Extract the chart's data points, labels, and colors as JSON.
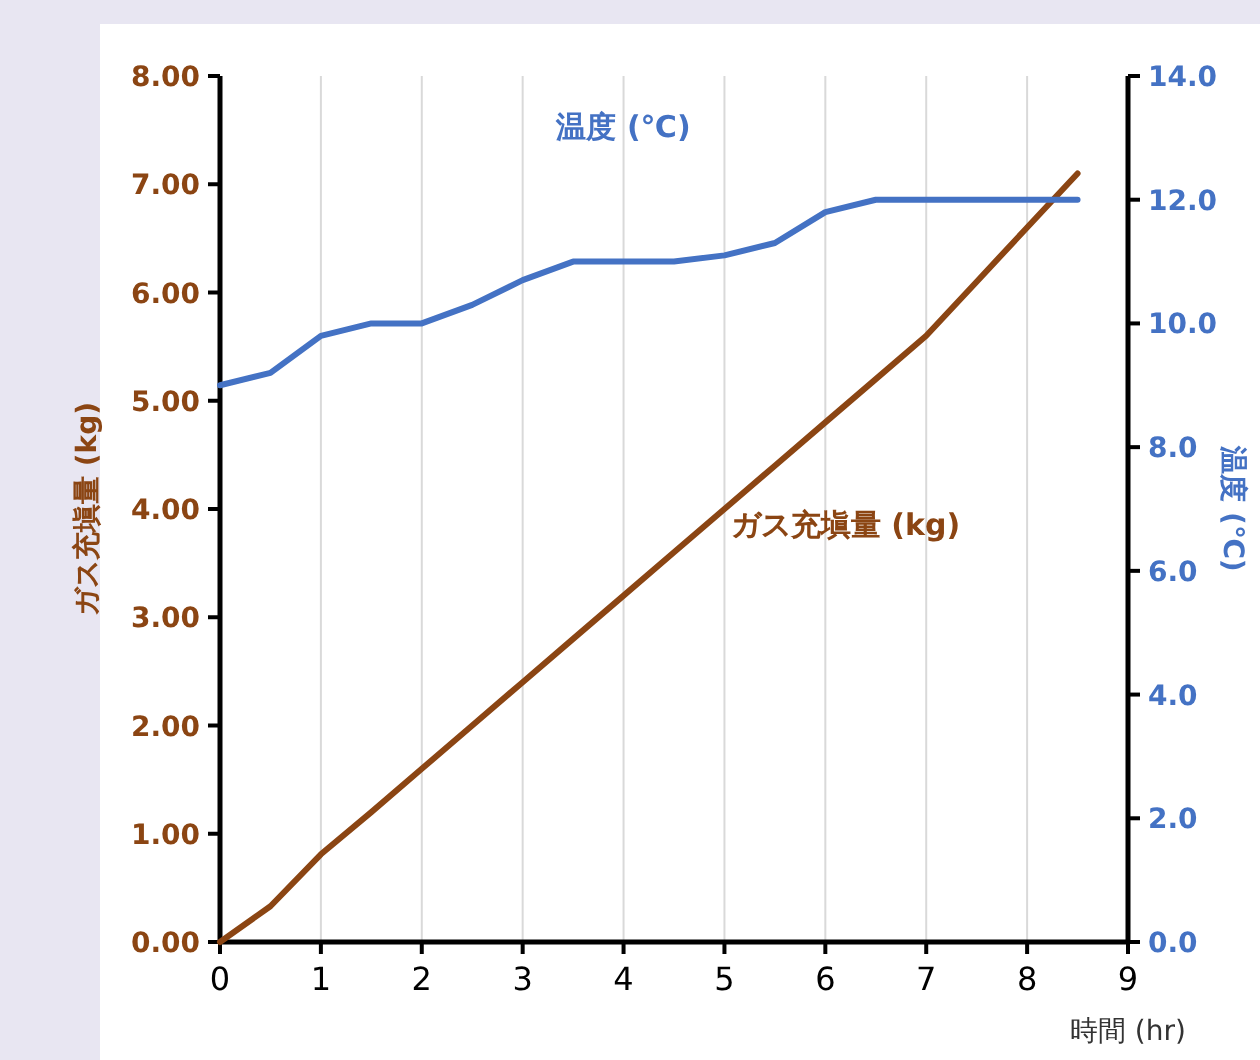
{
  "chart_data": {
    "type": "line",
    "xlabel": "時間 (hr)",
    "ylabel": "ガス充塡量 (kg)",
    "y2label": "温度 (℃)",
    "x": [
      0,
      0.5,
      1,
      1.5,
      2,
      2.5,
      3,
      3.5,
      4,
      4.5,
      5,
      5.5,
      6,
      6.5,
      7,
      7.5,
      8,
      8.5
    ],
    "series": [
      {
        "name": "ガス充塡量 (kg)",
        "color": "#8b4513",
        "values": [
          0,
          0.33,
          0.81,
          1.2,
          1.6,
          2.0,
          2.4,
          2.8,
          3.2,
          3.6,
          4.0,
          4.4,
          4.8,
          5.2,
          5.6,
          6.1,
          6.6,
          7.1
        ]
      },
      {
        "name": "温度 (℃)",
        "color": "#4472c4",
        "axis": "y2",
        "values": [
          9.0,
          9.2,
          9.8,
          10.0,
          10.0,
          10.3,
          10.7,
          11.0,
          11.0,
          11.0,
          11.1,
          11.3,
          11.8,
          12.0,
          12.0,
          12.0,
          12.0,
          12.0
        ]
      }
    ],
    "xlim": [
      0,
      9
    ],
    "xticks": [
      0,
      1,
      2,
      3,
      4,
      5,
      6,
      7,
      8,
      9
    ],
    "ylim": [
      0,
      8
    ],
    "yticks": [
      {
        "value": 0,
        "label": "0.00"
      },
      {
        "value": 1,
        "label": "1.00"
      },
      {
        "value": 2,
        "label": "2.00"
      },
      {
        "value": 3,
        "label": "3.00"
      },
      {
        "value": 4,
        "label": "4.00"
      },
      {
        "value": 5,
        "label": "5.00"
      },
      {
        "value": 6,
        "label": "6.00"
      },
      {
        "value": 7,
        "label": "7.00"
      },
      {
        "value": 8,
        "label": "8.00"
      }
    ],
    "y2lim": [
      0,
      14
    ],
    "y2ticks": [
      {
        "value": 0,
        "label": "0.0"
      },
      {
        "value": 2,
        "label": "2.0"
      },
      {
        "value": 4,
        "label": "4.0"
      },
      {
        "value": 6,
        "label": "6.0"
      },
      {
        "value": 8,
        "label": "8.0"
      },
      {
        "value": 10,
        "label": "10.0"
      },
      {
        "value": 12,
        "label": "12.0"
      },
      {
        "value": 14,
        "label": "14.0"
      }
    ],
    "grid": "x",
    "marker": "none",
    "line_style": "solid"
  }
}
